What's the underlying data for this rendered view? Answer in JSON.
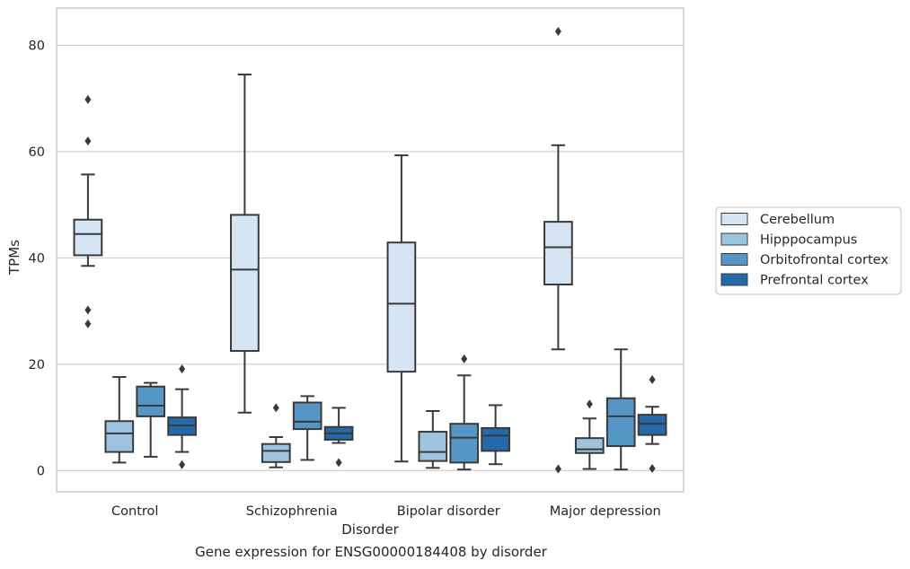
{
  "caption": "Gene expression for ENSG00000184408 by disorder",
  "chart_data": {
    "type": "box",
    "xlabel": "Disorder",
    "ylabel": "TPMs",
    "ylim": [
      -4,
      87
    ],
    "yticks": [
      0,
      20,
      40,
      60,
      80
    ],
    "grid": "horizontal",
    "legend_position": "right",
    "categories": [
      "Control",
      "Schizophrenia",
      "Bipolar disorder",
      "Major depression"
    ],
    "series": [
      {
        "name": "Cerebellum",
        "color": "#d6e5f3",
        "boxes": [
          {
            "whislo": 38.5,
            "q1": 40.5,
            "med": 44.5,
            "q3": 47.2,
            "whishi": 55.7,
            "fliers": [
              69.8,
              62.0,
              30.2,
              27.6
            ]
          },
          {
            "whislo": 10.9,
            "q1": 22.5,
            "med": 37.8,
            "q3": 48.1,
            "whishi": 74.5,
            "fliers": []
          },
          {
            "whislo": 1.7,
            "q1": 18.6,
            "med": 31.4,
            "q3": 42.9,
            "whishi": 59.3,
            "fliers": []
          },
          {
            "whislo": 22.8,
            "q1": 35.0,
            "med": 42.0,
            "q3": 46.8,
            "whishi": 61.2,
            "fliers": [
              82.6,
              0.3
            ]
          }
        ]
      },
      {
        "name": "Hipppocampus",
        "color": "#9cc4de",
        "boxes": [
          {
            "whislo": 1.5,
            "q1": 3.5,
            "med": 7.0,
            "q3": 9.3,
            "whishi": 17.6,
            "fliers": []
          },
          {
            "whislo": 0.6,
            "q1": 1.6,
            "med": 3.7,
            "q3": 5.0,
            "whishi": 6.3,
            "fliers": [
              11.8
            ]
          },
          {
            "whislo": 0.5,
            "q1": 1.8,
            "med": 3.5,
            "q3": 7.3,
            "whishi": 11.2,
            "fliers": []
          },
          {
            "whislo": 0.3,
            "q1": 3.3,
            "med": 4.0,
            "q3": 6.1,
            "whishi": 9.8,
            "fliers": [
              12.5
            ]
          }
        ]
      },
      {
        "name": "Orbitofrontal cortex",
        "color": "#5596c6",
        "boxes": [
          {
            "whislo": 2.6,
            "q1": 10.2,
            "med": 12.2,
            "q3": 15.8,
            "whishi": 16.5,
            "fliers": []
          },
          {
            "whislo": 2.0,
            "q1": 7.8,
            "med": 9.2,
            "q3": 12.8,
            "whishi": 14.0,
            "fliers": []
          },
          {
            "whislo": 0.2,
            "q1": 1.5,
            "med": 6.2,
            "q3": 8.8,
            "whishi": 17.9,
            "fliers": [
              21.0
            ]
          },
          {
            "whislo": 0.2,
            "q1": 4.6,
            "med": 10.2,
            "q3": 13.6,
            "whishi": 22.8,
            "fliers": []
          }
        ]
      },
      {
        "name": "Prefrontal cortex",
        "color": "#2469a9",
        "boxes": [
          {
            "whislo": 3.5,
            "q1": 6.7,
            "med": 8.5,
            "q3": 10.0,
            "whishi": 15.3,
            "fliers": [
              19.1,
              1.1
            ]
          },
          {
            "whislo": 5.2,
            "q1": 5.8,
            "med": 7.0,
            "q3": 8.2,
            "whishi": 11.8,
            "fliers": [
              1.5
            ]
          },
          {
            "whislo": 1.2,
            "q1": 3.7,
            "med": 6.6,
            "q3": 8.0,
            "whishi": 12.3,
            "fliers": []
          },
          {
            "whislo": 5.0,
            "q1": 6.7,
            "med": 8.8,
            "q3": 10.5,
            "whishi": 12.0,
            "fliers": [
              17.1,
              0.4
            ]
          }
        ]
      }
    ]
  }
}
